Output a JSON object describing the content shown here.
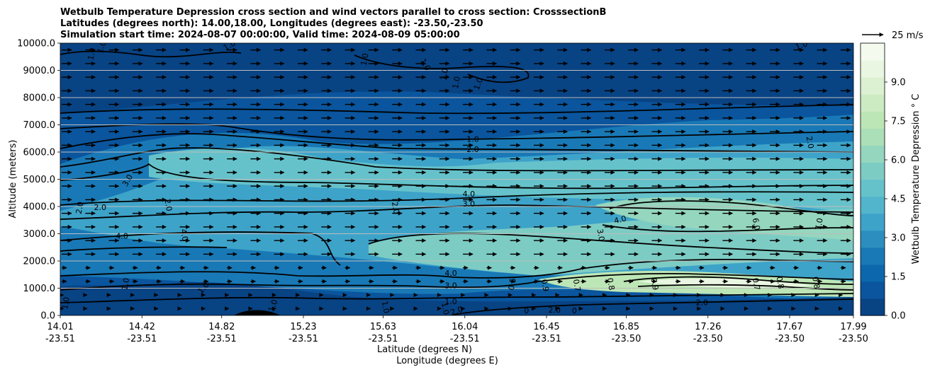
{
  "chart_data": {
    "type": "contour",
    "title_lines": [
      "Wetbulb Temperature Depression cross section and wind vectors parallel to cross section: CrosssectionB",
      "Latitudes (degrees north): 14.00,18.00, Longitudes (degrees east): -23.50,-23.50",
      "Simulation start time: 2024-08-07 00:00:00, Valid time: 2024-08-09 05:00:00"
    ],
    "ylabel": "Altitude (meters)",
    "xlabel_lat": "Latitude (degrees N)",
    "xlabel_lon": "Longitude (degrees E)",
    "ylim": [
      0,
      10000
    ],
    "y_ticks": [
      "0.0",
      "1000.0",
      "2000.0",
      "3000.0",
      "4000.0",
      "5000.0",
      "6000.0",
      "7000.0",
      "8000.0",
      "9000.0",
      "10000.0"
    ],
    "x_ticks_lat": [
      "14.01",
      "14.42",
      "14.82",
      "15.23",
      "15.63",
      "16.04",
      "16.45",
      "16.85",
      "17.26",
      "17.67",
      "17.99"
    ],
    "x_ticks_lon": [
      "-23.51",
      "-23.51",
      "-23.51",
      "-23.51",
      "-23.51",
      "-23.51",
      "-23.51",
      "-23.50",
      "-23.50",
      "-23.50",
      "-23.50"
    ],
    "grid": "horizontal",
    "colorbar": {
      "label": "Wetbulb Temperature Depression ° C",
      "range": [
        0,
        10.5
      ],
      "ticks": [
        "0.0",
        "1.5",
        "3.0",
        "4.5",
        "6.0",
        "7.5",
        "9.0"
      ],
      "colors": [
        "#084384",
        "#0a559d",
        "#0d67ad",
        "#1979b6",
        "#2c8ebf",
        "#3ea3c9",
        "#52b5cc",
        "#66c2ca",
        "#7dccc4",
        "#95d6be",
        "#aadfb7",
        "#bde6b6",
        "#cdebc3",
        "#dcf1d2",
        "#e9f6e1",
        "#f4fbee"
      ]
    },
    "wind_legend": "25 m/s",
    "contour_labels": [
      {
        "text": "1.0",
        "x": 14.17,
        "y": 9600,
        "rot": -80
      },
      {
        "text": "1.0",
        "x": 14.22,
        "y": 9850,
        "rot": -70
      },
      {
        "text": "1.0",
        "x": 14.86,
        "y": 9900,
        "rot": -30
      },
      {
        "text": "1.0",
        "x": 15.54,
        "y": 9400,
        "rot": -80
      },
      {
        "text": "1.0",
        "x": 15.84,
        "y": 9200,
        "rot": 60
      },
      {
        "text": "1.0",
        "x": 15.94,
        "y": 8850,
        "rot": -80
      },
      {
        "text": "1.0",
        "x": 16.0,
        "y": 8550,
        "rot": -80
      },
      {
        "text": "1.0",
        "x": 16.11,
        "y": 8500,
        "rot": -70
      },
      {
        "text": "1.0",
        "x": 17.73,
        "y": 9900,
        "rot": -20
      },
      {
        "text": "1.0",
        "x": 16.08,
        "y": 6450,
        "rot": 0
      },
      {
        "text": "2.0",
        "x": 16.08,
        "y": 6080,
        "rot": 0
      },
      {
        "text": "2.0",
        "x": 17.77,
        "y": 6350,
        "rot": 80
      },
      {
        "text": "3.0",
        "x": 14.35,
        "y": 4950,
        "rot": -60
      },
      {
        "text": "2.0",
        "x": 14.11,
        "y": 3950,
        "rot": -80
      },
      {
        "text": "2.0",
        "x": 14.21,
        "y": 3950,
        "rot": 0
      },
      {
        "text": "2.0",
        "x": 14.55,
        "y": 4050,
        "rot": 80
      },
      {
        "text": "2.0",
        "x": 15.69,
        "y": 3950,
        "rot": 80
      },
      {
        "text": "4.0",
        "x": 16.06,
        "y": 4440,
        "rot": 0
      },
      {
        "text": "3.0",
        "x": 16.06,
        "y": 4080,
        "rot": 0
      },
      {
        "text": "4.0",
        "x": 16.82,
        "y": 3500,
        "rot": -15
      },
      {
        "text": "6.0",
        "x": 17.5,
        "y": 3350,
        "rot": 80
      },
      {
        "text": "7.0",
        "x": 17.82,
        "y": 3350,
        "rot": -80
      },
      {
        "text": "4.0",
        "x": 14.32,
        "y": 2900,
        "rot": 0
      },
      {
        "text": "4.0",
        "x": 14.63,
        "y": 2950,
        "rot": 80
      },
      {
        "text": "3.0",
        "x": 16.72,
        "y": 2950,
        "rot": 80
      },
      {
        "text": "4.0",
        "x": 15.97,
        "y": 1530,
        "rot": 0
      },
      {
        "text": "3.0",
        "x": 15.97,
        "y": 1080,
        "rot": 0
      },
      {
        "text": "1.0",
        "x": 15.97,
        "y": 500,
        "rot": 0
      },
      {
        "text": "2.0",
        "x": 16.0,
        "y": 150,
        "rot": -20
      },
      {
        "text": "1.0",
        "x": 14.04,
        "y": 450,
        "rot": -80
      },
      {
        "text": "1.0",
        "x": 14.34,
        "y": 1150,
        "rot": -80
      },
      {
        "text": "1.0",
        "x": 14.73,
        "y": 1000,
        "rot": -50
      },
      {
        "text": "1.0",
        "x": 15.08,
        "y": 350,
        "rot": -70
      },
      {
        "text": "1.0",
        "x": 15.64,
        "y": 300,
        "rot": 80
      },
      {
        "text": "1.0",
        "x": 15.94,
        "y": 250,
        "rot": 80
      },
      {
        "text": "0.5",
        "x": 16.28,
        "y": 1150,
        "rot": -80
      },
      {
        "text": "0.9",
        "x": 16.44,
        "y": 1100,
        "rot": 80
      },
      {
        "text": "0.7",
        "x": 16.6,
        "y": 1100,
        "rot": 80
      },
      {
        "text": "0.8",
        "x": 16.77,
        "y": 1150,
        "rot": 80
      },
      {
        "text": "0.9",
        "x": 16.99,
        "y": 1150,
        "rot": 80
      },
      {
        "text": "0.7",
        "x": 17.5,
        "y": 1150,
        "rot": 80
      },
      {
        "text": "0.8",
        "x": 17.62,
        "y": 1200,
        "rot": 80
      },
      {
        "text": "0.8",
        "x": 17.8,
        "y": 1200,
        "rot": 80
      },
      {
        "text": "2.0",
        "x": 17.23,
        "y": 450,
        "rot": 0
      },
      {
        "text": "0",
        "x": 16.35,
        "y": 150,
        "rot": 0
      },
      {
        "text": "0",
        "x": 16.59,
        "y": 150,
        "rot": 0
      },
      {
        "text": "2.0",
        "x": 16.49,
        "y": 180,
        "rot": 0
      }
    ]
  }
}
